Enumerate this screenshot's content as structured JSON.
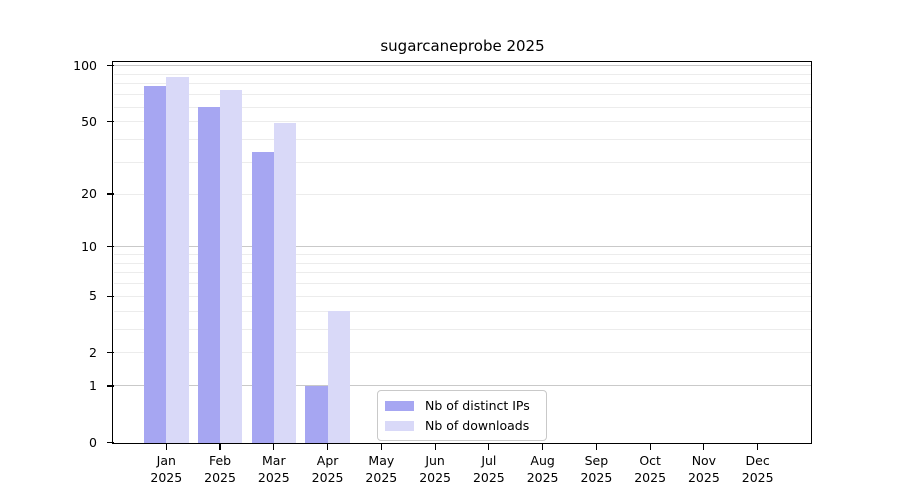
{
  "chart_data": {
    "type": "bar",
    "title": "sugarcaneprobe 2025",
    "categories": [
      "Jan 2025",
      "Feb 2025",
      "Mar 2025",
      "Apr 2025",
      "May 2025",
      "Jun 2025",
      "Jul 2025",
      "Aug 2025",
      "Sep 2025",
      "Oct 2025",
      "Nov 2025",
      "Dec 2025"
    ],
    "series": [
      {
        "name": "Nb of distinct IPs",
        "color": "#a6a6f2",
        "values": [
          78,
          60,
          34,
          1,
          0,
          0,
          0,
          0,
          0,
          0,
          0,
          0
        ]
      },
      {
        "name": "Nb of downloads",
        "color": "#d9d9f8",
        "values": [
          87,
          74,
          49,
          4,
          0,
          0,
          0,
          0,
          0,
          0,
          0,
          0
        ]
      }
    ],
    "yscale": "log1p",
    "ylim": [
      0,
      104
    ],
    "yticks": [
      100,
      50,
      20,
      10,
      5,
      2,
      1,
      0
    ],
    "major_gridline_values": [
      1,
      10,
      100
    ],
    "minor_gridline_values": [
      2,
      3,
      4,
      5,
      6,
      7,
      8,
      9,
      20,
      30,
      40,
      50,
      60,
      70,
      80,
      90
    ],
    "grid": "horizontal",
    "legend_position": "lower center",
    "colors": {
      "major_grid": "#c9c9c9",
      "minor_grid": "#ececec",
      "axis": "#000000",
      "text": "#000000",
      "legend_border": "#c9c9c9",
      "background": "#ffffff"
    }
  }
}
